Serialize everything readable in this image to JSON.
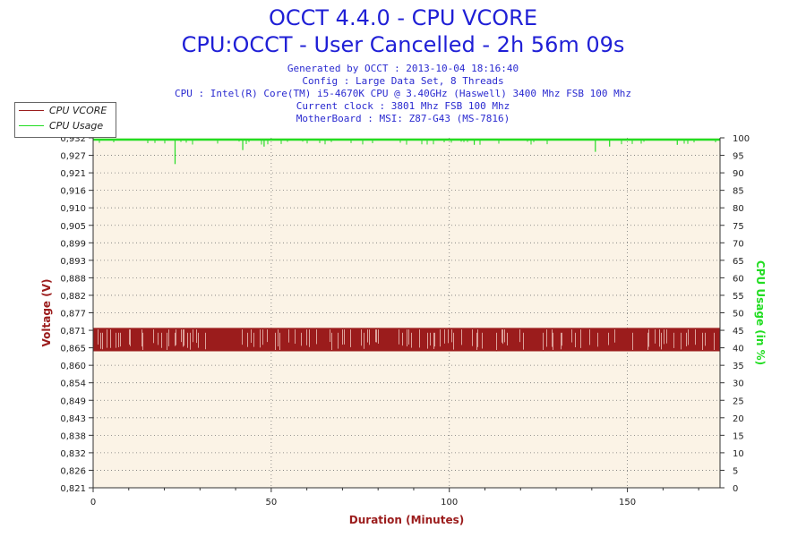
{
  "title": "OCCT 4.4.0 - CPU VCORE",
  "subtitle": "CPU:OCCT - User Cancelled - 2h 56m 09s",
  "info_lines": [
    "Generated by OCCT : 2013-10-04 18:16:40",
    "Config : Large Data Set, 8 Threads",
    "CPU : Intel(R) Core(TM) i5-4670K CPU @ 3.40GHz (Haswell) 3400 Mhz FSB 100 Mhz",
    "Current clock : 3801 Mhz FSB 100 Mhz",
    "MotherBoard : MSI: Z87-G43 (MS-7816)"
  ],
  "legend": [
    {
      "label": "CPU VCORE",
      "color": "#9b1c1c"
    },
    {
      "label": "CPU Usage",
      "color": "#22dd22"
    }
  ],
  "chart_data": {
    "type": "line",
    "xlabel": "Duration (Minutes)",
    "ylabel": "Voltage (V)",
    "y2label": "CPU Usage (in %)",
    "xlim": [
      0,
      176
    ],
    "ylim": [
      0.821,
      0.932
    ],
    "y2lim": [
      0,
      100
    ],
    "x_ticks": [
      0,
      50,
      100,
      150
    ],
    "y_ticks": [
      "0,821",
      "0,826",
      "0,832",
      "0,838",
      "0,843",
      "0,849",
      "0,854",
      "0,860",
      "0,865",
      "0,871",
      "0,877",
      "0,882",
      "0,888",
      "0,893",
      "0,899",
      "0,905",
      "0,910",
      "0,916",
      "0,921",
      "0,927",
      "0,932"
    ],
    "y2_ticks": [
      0,
      5,
      10,
      15,
      20,
      25,
      30,
      35,
      40,
      45,
      50,
      55,
      60,
      65,
      70,
      75,
      80,
      85,
      90,
      95,
      100
    ],
    "grid": true,
    "legend_position": "top-left",
    "series": [
      {
        "name": "CPU VCORE",
        "color": "#9b1c1c",
        "axis": "left",
        "low": 0.8645,
        "high": 0.8715,
        "description_values": "oscillates between 0.865 and 0.871 throughout run"
      },
      {
        "name": "CPU Usage",
        "color": "#22dd22",
        "axis": "right",
        "typical": 99.5,
        "dips": [
          [
            23,
            92.5
          ],
          [
            42,
            96.5
          ],
          [
            48,
            97.5
          ],
          [
            107,
            98
          ],
          [
            141,
            96
          ],
          [
            145,
            97.5
          ],
          [
            164,
            98
          ]
        ]
      }
    ]
  },
  "colors": {
    "plot_bg": "#fbf3e6",
    "axis_label": "#9b1c1c",
    "y2_label": "#22dd22",
    "title": "#1f1fd6"
  }
}
